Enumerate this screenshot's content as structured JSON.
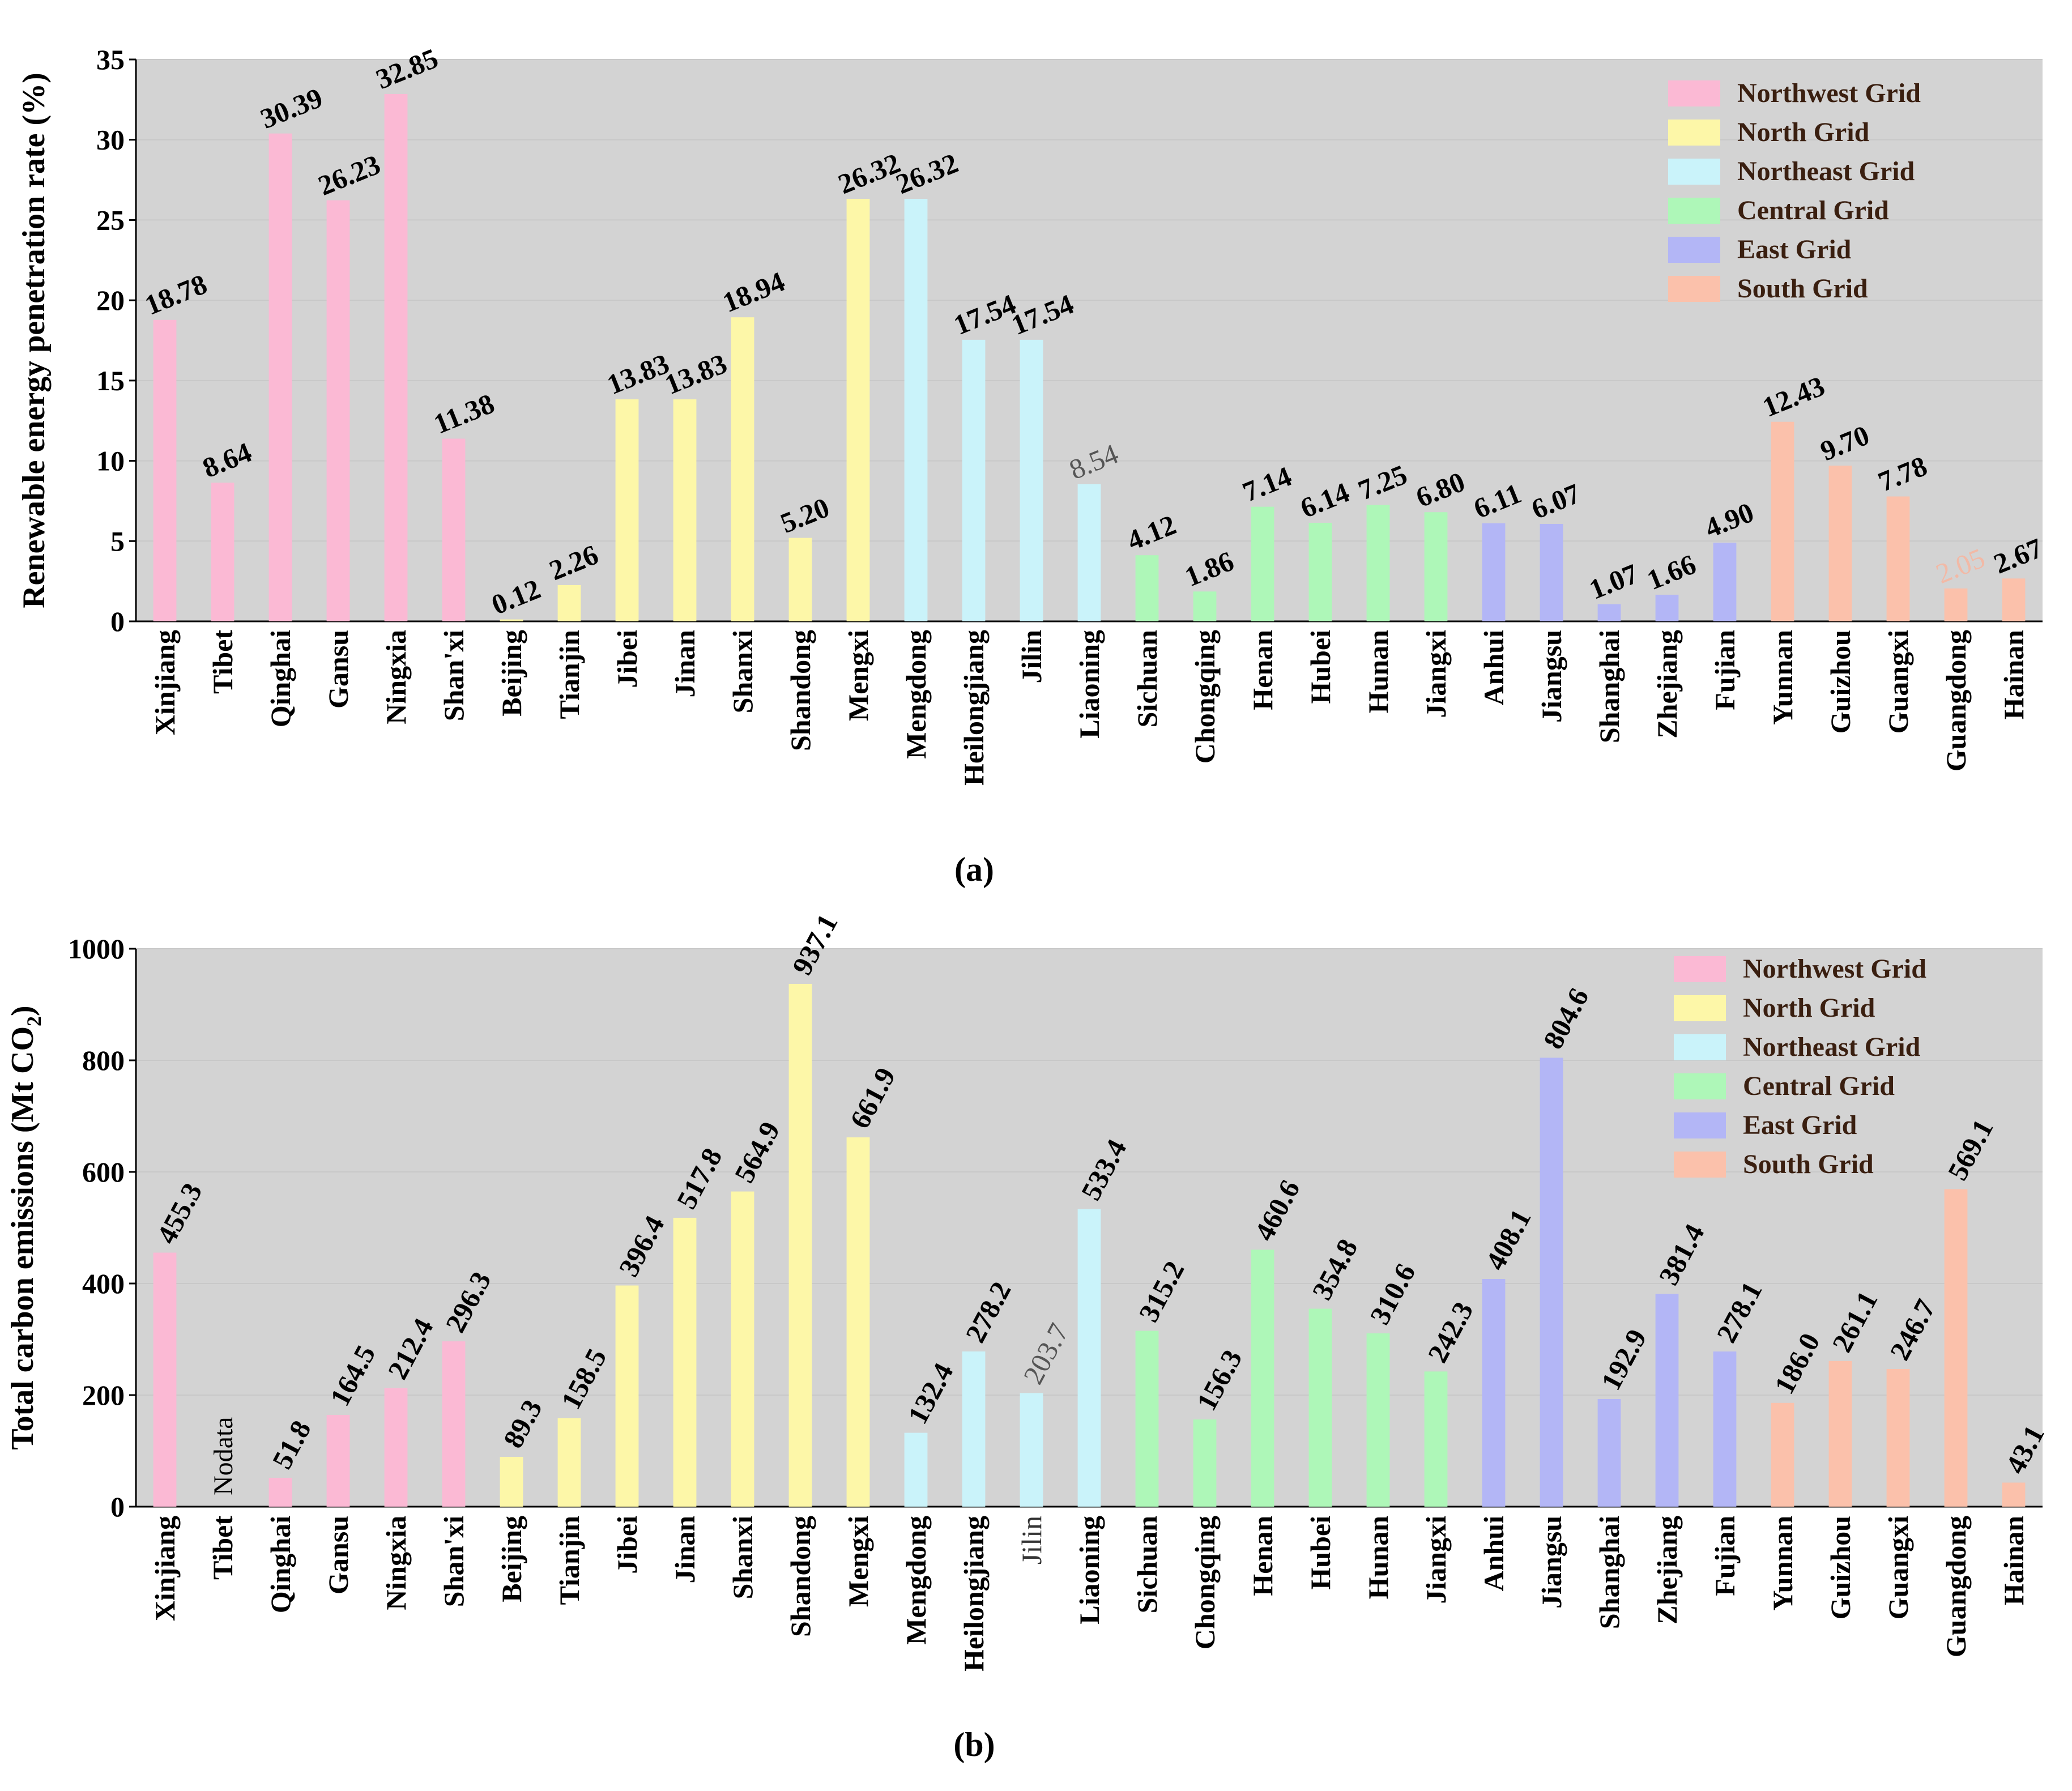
{
  "grids": {
    "Northwest Grid": "#fbb9d4",
    "North Grid": "#fdf7a8",
    "Northeast Grid": "#caf3fa",
    "Central Grid": "#aef7b8",
    "East Grid": "#b3b6f6",
    "South Grid": "#fbc1ab"
  },
  "chart_data": [
    {
      "type": "bar",
      "panel_label": "(a)",
      "ylabel": "Renewable energy penetration rate (%)",
      "xlabel": "",
      "ylim": [
        0,
        35
      ],
      "yticks": [
        "0",
        "5",
        "10",
        "15",
        "20",
        "25",
        "30",
        "35"
      ],
      "ytick_values": [
        0,
        5,
        10,
        15,
        20,
        25,
        30,
        35
      ],
      "background": "#d3d3d3",
      "legend": [
        "Northwest Grid",
        "North Grid",
        "Northeast Grid",
        "Central Grid",
        "East Grid",
        "South Grid"
      ],
      "legend_position": "top-right",
      "categories": [
        "Xinjiang",
        "Tibet",
        "Qinghai",
        "Gansu",
        "Ningxia",
        "Shan'xi",
        "Beijing",
        "Tianjin",
        "Jibei",
        "Jinan",
        "Shanxi",
        "Shandong",
        "Mengxi",
        "Mengdong",
        "Heilongjiang",
        "Jilin",
        "Liaoning",
        "Sichuan",
        "Chongqing",
        "Henan",
        "Hubei",
        "Hunan",
        "Jiangxi",
        "Anhui",
        "Jiangsu",
        "Shanghai",
        "Zhejiang",
        "Fujian",
        "Yunnan",
        "Guizhou",
        "Guangxi",
        "Guangdong",
        "Hainan"
      ],
      "grid": [
        "Northwest Grid",
        "Northwest Grid",
        "Northwest Grid",
        "Northwest Grid",
        "Northwest Grid",
        "Northwest Grid",
        "North Grid",
        "North Grid",
        "North Grid",
        "North Grid",
        "North Grid",
        "North Grid",
        "North Grid",
        "Northeast Grid",
        "Northeast Grid",
        "Northeast Grid",
        "Northeast Grid",
        "Central Grid",
        "Central Grid",
        "Central Grid",
        "Central Grid",
        "Central Grid",
        "Central Grid",
        "East Grid",
        "East Grid",
        "East Grid",
        "East Grid",
        "East Grid",
        "South Grid",
        "South Grid",
        "South Grid",
        "South Grid",
        "South Grid"
      ],
      "values": [
        18.78,
        8.64,
        30.39,
        26.23,
        32.85,
        11.38,
        0.12,
        2.26,
        13.83,
        13.83,
        18.94,
        5.2,
        26.32,
        26.32,
        17.54,
        17.54,
        8.54,
        4.12,
        1.86,
        7.14,
        6.14,
        7.25,
        6.8,
        6.11,
        6.07,
        1.07,
        1.66,
        4.9,
        12.43,
        9.7,
        7.78,
        2.05,
        2.67
      ],
      "labels": [
        "18.78",
        "8.64",
        "30.39",
        "26.23",
        "32.85",
        "11.38",
        "0.12",
        "2.26",
        "13.83",
        "13.83",
        "18.94",
        "5.20",
        "26.32",
        "26.32",
        "17.54",
        "17.54",
        "8.54",
        "4.12",
        "1.86",
        "7.14",
        "6.14",
        "7.25",
        "6.80",
        "6.11",
        "6.07",
        "1.07",
        "1.66",
        "4.90",
        "12.43",
        "9.70",
        "7.78",
        "2.05",
        "2.67"
      ]
    },
    {
      "type": "bar",
      "panel_label": "(b)",
      "ylabel": "Total carbon emissions (Mt CO2)",
      "ylabel_main": "Total carbon emissions (Mt CO",
      "ylabel_sub": "2",
      "ylabel_end": ")",
      "xlabel": "",
      "ylim": [
        0,
        1000
      ],
      "yticks": [
        "0",
        "200",
        "400",
        "600",
        "800",
        "1000"
      ],
      "ytick_values": [
        0,
        200,
        400,
        600,
        800,
        1000
      ],
      "background": "#d3d3d3",
      "legend": [
        "Northwest Grid",
        "North Grid",
        "Northeast Grid",
        "Central Grid",
        "East Grid",
        "South Grid"
      ],
      "legend_position": "top-right",
      "categories": [
        "Xinjiang",
        "Tibet",
        "Qinghai",
        "Gansu",
        "Ningxia",
        "Shan'xi",
        "Beijing",
        "Tianjin",
        "Jibei",
        "Jinan",
        "Shanxi",
        "Shandong",
        "Mengxi",
        "Mengdong",
        "Heilongjiang",
        "Jilin",
        "Liaoning",
        "Sichuan",
        "Chongqing",
        "Henan",
        "Hubei",
        "Hunan",
        "Jiangxi",
        "Anhui",
        "Jiangsu",
        "Shanghai",
        "Zhejiang",
        "Fujian",
        "Yunnan",
        "Guizhou",
        "Guangxi",
        "Guangdong",
        "Hainan"
      ],
      "grid": [
        "Northwest Grid",
        "Northwest Grid",
        "Northwest Grid",
        "Northwest Grid",
        "Northwest Grid",
        "Northwest Grid",
        "North Grid",
        "North Grid",
        "North Grid",
        "North Grid",
        "North Grid",
        "North Grid",
        "North Grid",
        "Northeast Grid",
        "Northeast Grid",
        "Northeast Grid",
        "Northeast Grid",
        "Central Grid",
        "Central Grid",
        "Central Grid",
        "Central Grid",
        "Central Grid",
        "Central Grid",
        "East Grid",
        "East Grid",
        "East Grid",
        "East Grid",
        "East Grid",
        "South Grid",
        "South Grid",
        "South Grid",
        "South Grid",
        "South Grid"
      ],
      "values": [
        455.3,
        null,
        51.8,
        164.5,
        212.4,
        296.3,
        89.3,
        158.5,
        396.4,
        517.8,
        564.9,
        937.1,
        661.9,
        132.4,
        278.2,
        203.7,
        533.4,
        315.2,
        156.3,
        460.6,
        354.8,
        310.6,
        242.3,
        408.1,
        804.6,
        192.9,
        381.4,
        278.1,
        186.0,
        261.1,
        246.7,
        569.1,
        43.1
      ],
      "labels": [
        "455.3",
        "Nodata",
        "51.8",
        "164.5",
        "212.4",
        "296.3",
        "89.3",
        "158.5",
        "396.4",
        "517.8",
        "564.9",
        "937.1",
        "661.9",
        "132.4",
        "278.2",
        "203.7",
        "533.4",
        "315.2",
        "156.3",
        "460.6",
        "354.8",
        "310.6",
        "242.3",
        "408.1",
        "804.6",
        "192.9",
        "381.4",
        "278.1",
        "186.0",
        "261.1",
        "246.7",
        "569.1",
        "43.1"
      ]
    }
  ]
}
